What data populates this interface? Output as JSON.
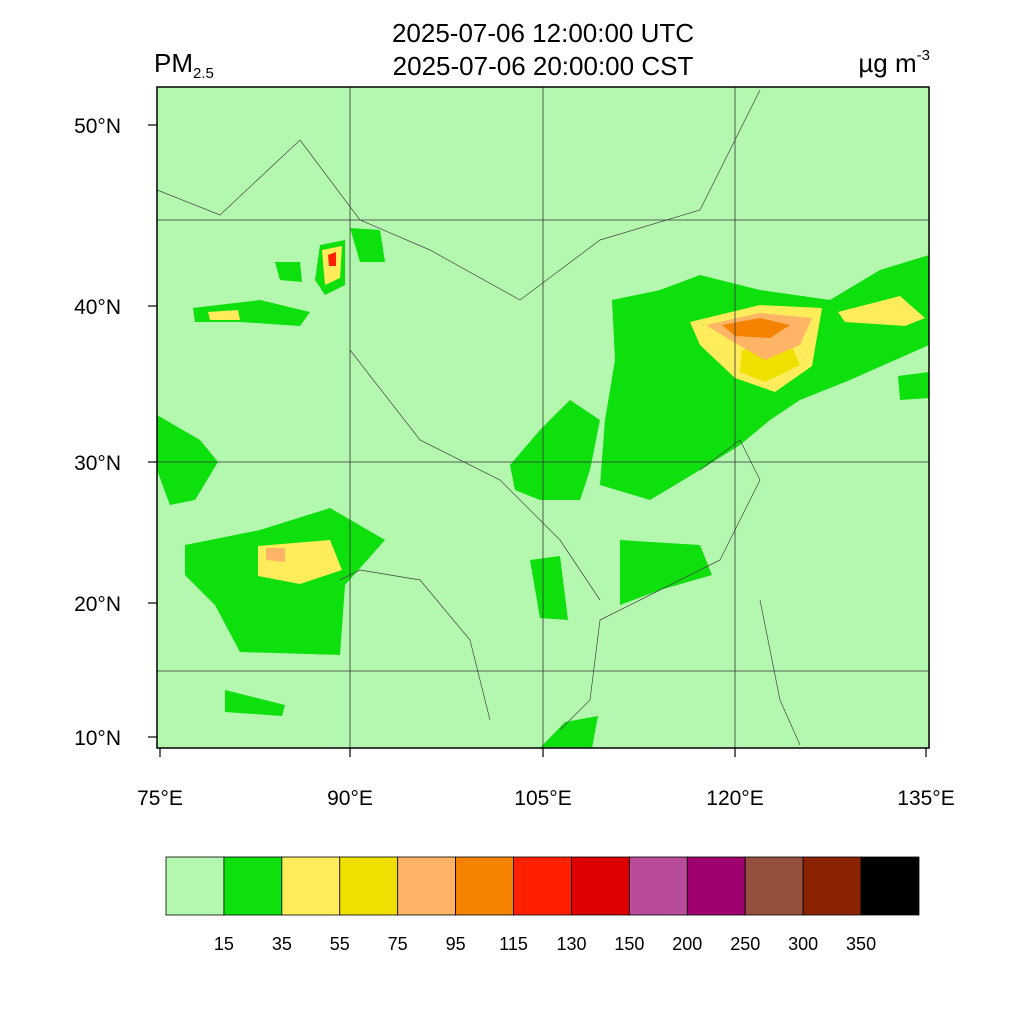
{
  "header": {
    "variable": "PM",
    "variable_sub": "2.5",
    "title_utc": "2025-07-06 12:00:00 UTC",
    "title_cst": "2025-07-06 20:00:00 CST",
    "unit": "µg m",
    "unit_exp": "-3"
  },
  "axes": {
    "lat_labels": [
      "50°N",
      "40°N",
      "30°N",
      "20°N",
      "10°N"
    ],
    "lon_labels": [
      "75°E",
      "90°E",
      "105°E",
      "120°E",
      "135°E"
    ]
  },
  "colorbar": {
    "colors": [
      "#b4f8b0",
      "#0ee00e",
      "#ffec5a",
      "#f0e000",
      "#ffb466",
      "#f58200",
      "#ff2000",
      "#dc0000",
      "#b94b9b",
      "#a0006e",
      "#964f3c",
      "#8c2300",
      "#000000"
    ],
    "labels": [
      "15",
      "35",
      "55",
      "75",
      "95",
      "115",
      "130",
      "150",
      "200",
      "250",
      "300",
      "350"
    ]
  }
}
